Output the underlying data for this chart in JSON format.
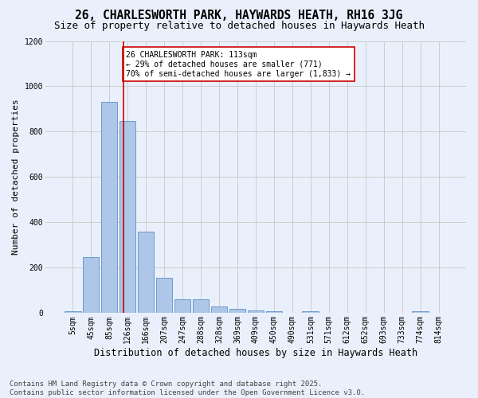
{
  "title": "26, CHARLESWORTH PARK, HAYWARDS HEATH, RH16 3JG",
  "subtitle": "Size of property relative to detached houses in Haywards Heath",
  "xlabel": "Distribution of detached houses by size in Haywards Heath",
  "ylabel": "Number of detached properties",
  "bar_labels": [
    "5sqm",
    "45sqm",
    "85sqm",
    "126sqm",
    "166sqm",
    "207sqm",
    "247sqm",
    "288sqm",
    "328sqm",
    "369sqm",
    "409sqm",
    "450sqm",
    "490sqm",
    "531sqm",
    "571sqm",
    "612sqm",
    "652sqm",
    "693sqm",
    "733sqm",
    "774sqm",
    "814sqm"
  ],
  "bar_values": [
    8,
    248,
    930,
    848,
    358,
    157,
    62,
    62,
    28,
    18,
    13,
    8,
    0,
    8,
    0,
    0,
    0,
    0,
    0,
    8,
    0
  ],
  "bar_color": "#aec6e8",
  "bar_edge_color": "#5b8fc9",
  "grid_color": "#cccccc",
  "background_color": "#eaf0fb",
  "vline_x": 2.78,
  "vline_color": "#cc0000",
  "annotation_text": "26 CHARLESWORTH PARK: 113sqm\n← 29% of detached houses are smaller (771)\n70% of semi-detached houses are larger (1,833) →",
  "annotation_box_color": "#ffffff",
  "annotation_box_edge": "#cc0000",
  "ylim": [
    0,
    1200
  ],
  "yticks": [
    0,
    200,
    400,
    600,
    800,
    1000,
    1200
  ],
  "footnote": "Contains HM Land Registry data © Crown copyright and database right 2025.\nContains public sector information licensed under the Open Government Licence v3.0.",
  "title_fontsize": 10.5,
  "subtitle_fontsize": 9,
  "ylabel_fontsize": 8,
  "xlabel_fontsize": 8.5,
  "tick_fontsize": 7,
  "annotation_fontsize": 7,
  "footnote_fontsize": 6.5
}
